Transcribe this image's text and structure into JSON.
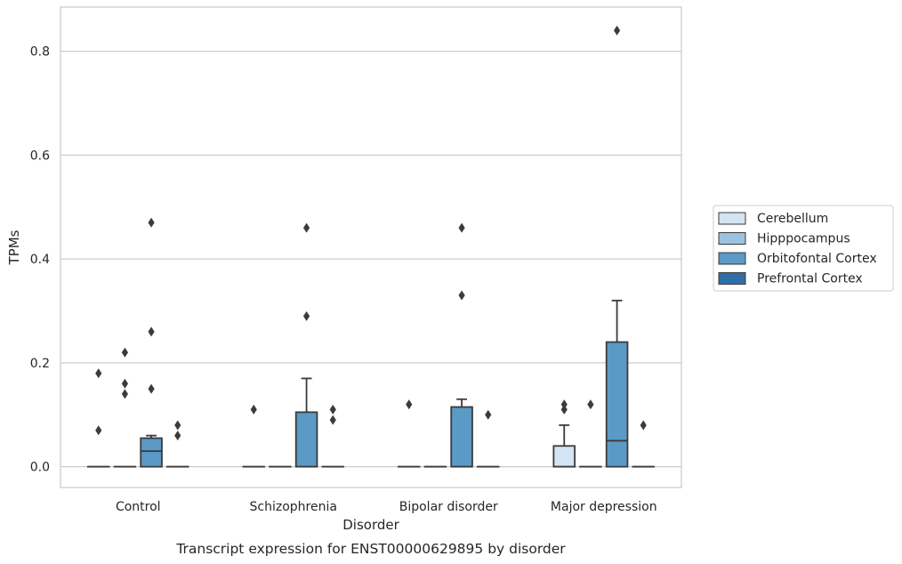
{
  "chart_data": {
    "type": "box",
    "caption": "Transcript expression for ENST00000629895 by disorder",
    "xlabel": "Disorder",
    "ylabel": "TPMs",
    "ylim": [
      -0.04,
      0.885
    ],
    "yticks": [
      0.0,
      0.2,
      0.4,
      0.6,
      0.8
    ],
    "ytick_labels": [
      "0.0",
      "0.2",
      "0.4",
      "0.6",
      "0.8"
    ],
    "grid": "horizontal",
    "legend_position": "right",
    "categories": [
      "Control",
      "Schizophrenia",
      "Bipolar disorder",
      "Major depression"
    ],
    "series": [
      {
        "name": "Cerebellum",
        "color": "#d3e4f3",
        "boxes": [
          {
            "q1": 0,
            "median": 0,
            "q3": 0,
            "whislo": 0,
            "whishi": 0,
            "fliers": [
              0.07,
              0.18
            ]
          },
          {
            "q1": 0,
            "median": 0,
            "q3": 0,
            "whislo": 0,
            "whishi": 0,
            "fliers": [
              0.11
            ]
          },
          {
            "q1": 0,
            "median": 0,
            "q3": 0,
            "whislo": 0,
            "whishi": 0,
            "fliers": [
              0.12
            ]
          },
          {
            "q1": 0,
            "median": 0,
            "q3": 0.04,
            "whislo": 0,
            "whishi": 0.08,
            "fliers": [
              0.11,
              0.12
            ]
          }
        ]
      },
      {
        "name": "Hipppocampus",
        "color": "#9cc3de",
        "boxes": [
          {
            "q1": 0,
            "median": 0,
            "q3": 0,
            "whislo": 0,
            "whishi": 0,
            "fliers": [
              0.14,
              0.16,
              0.22
            ]
          },
          {
            "q1": 0,
            "median": 0,
            "q3": 0,
            "whislo": 0,
            "whishi": 0,
            "fliers": []
          },
          {
            "q1": 0,
            "median": 0,
            "q3": 0,
            "whislo": 0,
            "whishi": 0,
            "fliers": []
          },
          {
            "q1": 0,
            "median": 0,
            "q3": 0,
            "whislo": 0,
            "whishi": 0,
            "fliers": [
              0.12
            ]
          }
        ]
      },
      {
        "name": "Orbitofontal Cortex",
        "color": "#5b9ac6",
        "boxes": [
          {
            "q1": 0,
            "median": 0.03,
            "q3": 0.055,
            "whislo": 0,
            "whishi": 0.06,
            "fliers": [
              0.15,
              0.26,
              0.47
            ]
          },
          {
            "q1": 0,
            "median": 0,
            "q3": 0.105,
            "whislo": 0,
            "whishi": 0.17,
            "fliers": [
              0.29,
              0.46
            ]
          },
          {
            "q1": 0,
            "median": 0,
            "q3": 0.115,
            "whislo": 0,
            "whishi": 0.13,
            "fliers": [
              0.33,
              0.46
            ]
          },
          {
            "q1": 0,
            "median": 0.05,
            "q3": 0.24,
            "whislo": 0,
            "whishi": 0.32,
            "fliers": [
              0.84
            ]
          }
        ]
      },
      {
        "name": "Prefrontal Cortex",
        "color": "#2f6ea6",
        "boxes": [
          {
            "q1": 0,
            "median": 0,
            "q3": 0,
            "whislo": 0,
            "whishi": 0,
            "fliers": [
              0.06,
              0.08
            ]
          },
          {
            "q1": 0,
            "median": 0,
            "q3": 0,
            "whislo": 0,
            "whishi": 0,
            "fliers": [
              0.09,
              0.11
            ]
          },
          {
            "q1": 0,
            "median": 0,
            "q3": 0,
            "whislo": 0,
            "whishi": 0,
            "fliers": [
              0.1
            ]
          },
          {
            "q1": 0,
            "median": 0,
            "q3": 0,
            "whislo": 0,
            "whishi": 0,
            "fliers": [
              0.08
            ]
          }
        ]
      }
    ]
  }
}
